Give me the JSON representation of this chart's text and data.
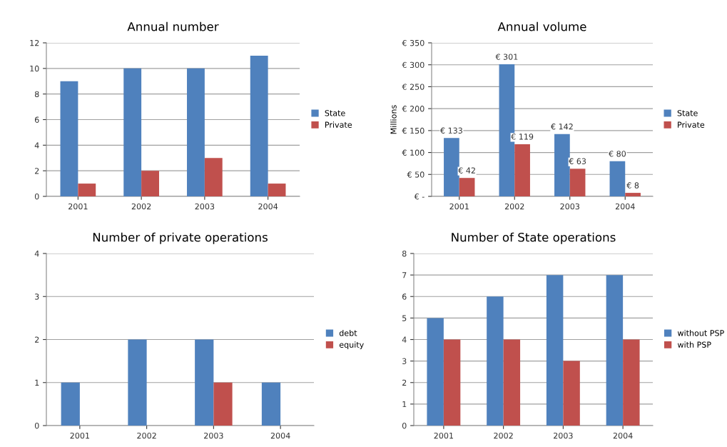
{
  "chart_data": [
    {
      "type": "bar",
      "title": "Annual number",
      "categories": [
        "2001",
        "2002",
        "2003",
        "2004"
      ],
      "series": [
        {
          "name": "State",
          "color": "#4f81bd",
          "values": [
            9,
            10,
            10,
            11
          ]
        },
        {
          "name": "Private",
          "color": "#c0504d",
          "values": [
            1,
            2,
            3,
            1
          ]
        }
      ],
      "ylim": [
        0,
        12
      ],
      "yticks": [
        0,
        2,
        4,
        6,
        8,
        10,
        12
      ],
      "grid": "y",
      "legend": "right"
    },
    {
      "type": "bar",
      "title": "Annual volume",
      "ylabel": "Millions",
      "categories": [
        "2001",
        "2002",
        "2003",
        "2004"
      ],
      "series": [
        {
          "name": "State",
          "color": "#4f81bd",
          "values": [
            133,
            301,
            142,
            80
          ],
          "value_labels": [
            "€ 133",
            "€ 301",
            "€ 142",
            "€ 80"
          ]
        },
        {
          "name": "Private",
          "color": "#c0504d",
          "values": [
            42,
            119,
            63,
            8
          ],
          "value_labels": [
            "€ 42",
            "€ 119",
            "€ 63",
            "€ 8"
          ]
        }
      ],
      "ylim": [
        0,
        350
      ],
      "yticks": [
        {
          "value": 0,
          "label": "€ -"
        },
        {
          "value": 50,
          "label": "€ 50"
        },
        {
          "value": 100,
          "label": "€ 100"
        },
        {
          "value": 150,
          "label": "€ 150"
        },
        {
          "value": 200,
          "label": "€ 200"
        },
        {
          "value": 250,
          "label": "€ 250"
        },
        {
          "value": 300,
          "label": "€ 300"
        },
        {
          "value": 350,
          "label": "€ 350"
        }
      ],
      "grid": "y",
      "legend": "right"
    },
    {
      "type": "bar",
      "title": "Number of private operations",
      "categories": [
        "2001",
        "2002",
        "2003",
        "2004"
      ],
      "series": [
        {
          "name": "debt",
          "color": "#4f81bd",
          "values": [
            1,
            2,
            2,
            1
          ]
        },
        {
          "name": "equity",
          "color": "#c0504d",
          "values": [
            0,
            0,
            1,
            0
          ]
        }
      ],
      "ylim": [
        0,
        4
      ],
      "yticks": [
        0,
        1,
        2,
        3,
        4
      ],
      "grid": "y",
      "legend": "right"
    },
    {
      "type": "bar",
      "title": "Number of State operations",
      "categories": [
        "2001",
        "2002",
        "2003",
        "2004"
      ],
      "series": [
        {
          "name": "without PSP",
          "color": "#4f81bd",
          "values": [
            5,
            6,
            7,
            7
          ]
        },
        {
          "name": "with PSP",
          "color": "#c0504d",
          "values": [
            4,
            4,
            3,
            4
          ]
        }
      ],
      "ylim": [
        0,
        8
      ],
      "yticks": [
        0,
        1,
        2,
        3,
        4,
        5,
        6,
        7,
        8
      ],
      "grid": "y",
      "legend": "right"
    }
  ]
}
